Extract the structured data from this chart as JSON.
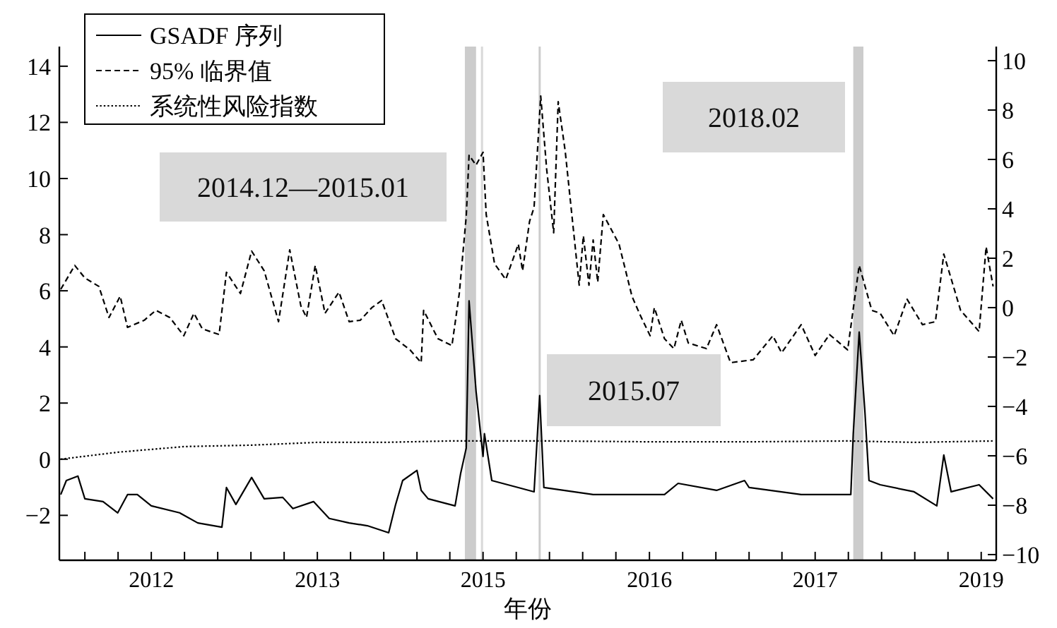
{
  "chart_data": {
    "type": "line",
    "xlabel": "年份",
    "legend": "top left",
    "grid": false,
    "xlim": [
      "2011-10-20",
      "2019-02-20"
    ],
    "xticks": [
      {
        "value": "2012-01-01",
        "label": null
      },
      {
        "value": "2012-04-05",
        "label": null
      },
      {
        "value": "2012-07-09",
        "label": "2012"
      },
      {
        "value": "2012-10-12",
        "label": null
      },
      {
        "value": "2013-01-15",
        "label": null
      },
      {
        "value": "2013-04-20",
        "label": null
      },
      {
        "value": "2013-07-24",
        "label": null
      },
      {
        "value": "2013-10-27",
        "label": "2013"
      },
      {
        "value": "2014-01-30",
        "label": null
      },
      {
        "value": "2014-05-05",
        "label": null
      },
      {
        "value": "2014-08-08",
        "label": null
      },
      {
        "value": "2014-11-10",
        "label": null
      },
      {
        "value": "2015-02-13",
        "label": "2015"
      },
      {
        "value": "2015-05-19",
        "label": null
      },
      {
        "value": "2015-08-22",
        "label": null
      },
      {
        "value": "2015-11-25",
        "label": null
      },
      {
        "value": "2016-02-28",
        "label": null
      },
      {
        "value": "2016-06-03",
        "label": "2016"
      },
      {
        "value": "2016-09-06",
        "label": null
      },
      {
        "value": "2016-12-10",
        "label": null
      },
      {
        "value": "2017-03-15",
        "label": null
      },
      {
        "value": "2017-06-17",
        "label": null
      },
      {
        "value": "2017-09-20",
        "label": "2017"
      },
      {
        "value": "2017-12-24",
        "label": null
      },
      {
        "value": "2018-03-29",
        "label": null
      },
      {
        "value": "2018-07-02",
        "label": null
      },
      {
        "value": "2018-10-05",
        "label": null
      },
      {
        "value": "2019-01-08",
        "label": "2019"
      }
    ],
    "ylim": [
      -3.6,
      14.7
    ],
    "yticks": [
      -2,
      0,
      2,
      4,
      6,
      8,
      10,
      12,
      14
    ],
    "y2lim": [
      -10.23,
      10.57
    ],
    "y2ticks": [
      -10,
      -8,
      -6,
      -4,
      -2,
      0,
      2,
      4,
      6,
      8,
      10
    ],
    "bands": [
      {
        "axis": "x",
        "from": "2014-12-23",
        "to": "2015-01-24",
        "color": "#cccccc"
      },
      {
        "axis": "x",
        "from": "2018-01-07",
        "to": "2018-02-05",
        "color": "#cccccc"
      }
    ],
    "ref_lines": [
      {
        "axis": "x",
        "value": "2015-02-10",
        "color": "#d9d9d9"
      },
      {
        "axis": "x",
        "value": "2015-07-25",
        "color": "#cccccc"
      }
    ],
    "annotations": [
      "2014.12—2015.01",
      "2015.07",
      "2018.02"
    ],
    "series": [
      {
        "name": "GSADF 序列",
        "type": "line",
        "color": "#000000",
        "line_style": "solid",
        "x": [
          "2011-10-24",
          "2011-11-09",
          "2011-12-12",
          "2012-01-01",
          "2012-02-22",
          "2012-04-04",
          "2012-05-02",
          "2012-05-30",
          "2012-07-09",
          "2012-09-28",
          "2012-11-19",
          "2013-01-27",
          "2013-02-09",
          "2013-03-08",
          "2013-04-22",
          "2013-05-28",
          "2013-07-20",
          "2013-08-18",
          "2013-10-16",
          "2013-11-30",
          "2014-01-26",
          "2014-03-19",
          "2014-05-19",
          "2014-06-08",
          "2014-06-28",
          "2014-08-08",
          "2014-08-20",
          "2014-09-09",
          "2014-11-25",
          "2014-12-11",
          "2014-12-27",
          "2015-01-04",
          "2015-01-24",
          "2015-02-13",
          "2015-02-17",
          "2015-03-10",
          "2015-05-25",
          "2015-07-09",
          "2015-07-25",
          "2015-08-06",
          "2015-12-25",
          "2016-07-16",
          "2016-08-24",
          "2016-12-12",
          "2017-03-02",
          "2017-03-15",
          "2017-08-11",
          "2017-12-31",
          "2018-01-07",
          "2018-01-24",
          "2018-02-09",
          "2018-02-21",
          "2018-03-25",
          "2018-06-30",
          "2018-09-03",
          "2018-09-23",
          "2018-10-14",
          "2019-01-02",
          "2019-02-11"
        ],
        "values": [
          -1.26,
          -0.76,
          -0.6,
          -1.41,
          -1.51,
          -1.91,
          -1.26,
          -1.26,
          -1.66,
          -1.91,
          -2.27,
          -2.42,
          -1.01,
          -1.61,
          -0.65,
          -1.41,
          -1.36,
          -1.76,
          -1.51,
          -2.11,
          -2.27,
          -2.37,
          -2.62,
          -1.61,
          -0.76,
          -0.4,
          -1.11,
          -1.41,
          -1.66,
          -0.5,
          0.4,
          5.64,
          2.42,
          0.1,
          0.91,
          -0.76,
          -1.01,
          -1.16,
          2.27,
          -1.01,
          -1.26,
          -1.26,
          -0.86,
          -1.11,
          -0.76,
          -1.01,
          -1.26,
          -1.26,
          0.91,
          4.53,
          1.76,
          -0.76,
          -0.91,
          -1.16,
          -1.66,
          0.15,
          -1.16,
          -0.91,
          -1.41
        ]
      },
      {
        "name": "95% 临界值",
        "type": "line",
        "axis": "y2",
        "color": "#000000",
        "line_style": "dashed",
        "x": [
          "2011-10-24",
          "2011-12-03",
          "2012-01-01",
          "2012-02-10",
          "2012-03-10",
          "2012-04-11",
          "2012-05-02",
          "2012-06-19",
          "2012-07-22",
          "2012-08-31",
          "2012-10-10",
          "2012-11-08",
          "2012-12-02",
          "2013-01-19",
          "2013-02-09",
          "2013-03-21",
          "2013-04-22",
          "2013-05-28",
          "2013-07-08",
          "2013-08-09",
          "2013-09-10",
          "2013-09-26",
          "2013-10-21",
          "2013-11-18",
          "2013-12-28",
          "2014-01-26",
          "2014-02-27",
          "2014-04-01",
          "2014-04-29",
          "2014-06-08",
          "2014-07-19",
          "2014-08-20",
          "2014-08-27",
          "2014-10-07",
          "2014-11-16",
          "2014-12-07",
          "2014-12-27",
          "2015-01-04",
          "2015-01-24",
          "2015-02-13",
          "2015-02-22",
          "2015-03-18",
          "2015-04-19",
          "2015-05-25",
          "2015-06-06",
          "2015-06-26",
          "2015-07-09",
          "2015-07-28",
          "2015-08-14",
          "2015-09-03",
          "2015-09-16",
          "2015-10-06",
          "2015-11-15",
          "2015-11-27",
          "2015-12-13",
          "2015-12-25",
          "2016-01-07",
          "2016-01-23",
          "2016-03-08",
          "2016-04-14",
          "2016-05-07",
          "2016-06-05",
          "2016-06-17",
          "2016-07-16",
          "2016-08-12",
          "2016-09-02",
          "2016-09-22",
          "2016-11-13",
          "2016-12-12",
          "2017-01-21",
          "2017-03-27",
          "2017-05-22",
          "2017-06-16",
          "2017-08-11",
          "2017-09-20",
          "2017-10-31",
          "2017-12-22",
          "2018-01-24",
          "2018-03-01",
          "2018-03-25",
          "2018-05-04",
          "2018-06-10",
          "2018-07-24",
          "2018-08-30",
          "2018-09-23",
          "2018-11-10",
          "2019-01-02",
          "2019-01-22",
          "2019-02-11"
        ],
        "values": [
          0.74,
          1.71,
          1.2,
          0.86,
          -0.4,
          0.46,
          -0.8,
          -0.51,
          -0.11,
          -0.4,
          -1.14,
          -0.23,
          -0.86,
          -1.09,
          1.43,
          0.57,
          2.29,
          1.49,
          -0.57,
          2.34,
          0.06,
          -0.4,
          1.71,
          -0.23,
          0.63,
          -0.57,
          -0.51,
          0,
          0.29,
          -1.26,
          -1.71,
          -2.23,
          -0.11,
          -1.26,
          -1.54,
          0.57,
          3.71,
          6.17,
          5.77,
          6.29,
          3.77,
          1.77,
          1.14,
          2.57,
          1.49,
          3.49,
          4.06,
          8.57,
          5.6,
          3.03,
          8.34,
          6.34,
          0.91,
          2.91,
          0.91,
          2.74,
          1.03,
          3.77,
          2.57,
          0.46,
          -0.29,
          -1.14,
          0,
          -1.26,
          -1.66,
          -0.51,
          -1.43,
          -1.66,
          -0.69,
          -2.23,
          -2.11,
          -1.14,
          -1.83,
          -0.69,
          -1.94,
          -1.09,
          -1.71,
          1.71,
          -0.11,
          -0.23,
          -1.14,
          0.34,
          -0.69,
          -0.57,
          2.17,
          -0.11,
          -0.97,
          2.46,
          0.86
        ]
      },
      {
        "name": "系统性风险指数",
        "type": "line",
        "color": "#000000",
        "line_style": "dotted",
        "x": [
          "2011-10-24",
          "2012-04-05",
          "2012-10-12",
          "2013-04-20",
          "2013-10-27",
          "2014-05-05",
          "2014-11-10",
          "2015-08-22",
          "2016-06-03",
          "2017-03-15",
          "2017-12-24",
          "2018-07-02",
          "2019-02-11"
        ],
        "values": [
          0.0,
          0.25,
          0.45,
          0.5,
          0.6,
          0.6,
          0.65,
          0.65,
          0.62,
          0.62,
          0.65,
          0.6,
          0.65
        ]
      }
    ]
  }
}
